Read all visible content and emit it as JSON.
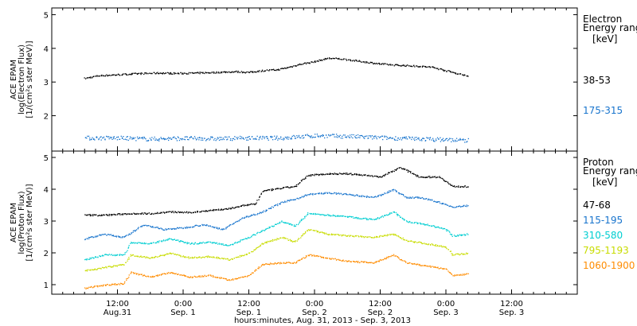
{
  "chart_data": [
    {
      "type": "scatter",
      "ylabel": [
        "ACE EPAM",
        "log(Electron Flux)",
        "[1/(cm²s ster MeV)]"
      ],
      "ylim": [
        0.95,
        5.2
      ],
      "yticks": [
        2,
        3,
        4,
        5
      ],
      "legend": {
        "title_lines": [
          "Electron",
          "Energy range"
        ],
        "unit": "[keV]",
        "placement": "right"
      },
      "series": [
        {
          "name": "38-53",
          "color": "#000000",
          "x": [
            0.25,
            0.35,
            0.5,
            0.65,
            0.8,
            0.95,
            1.1,
            1.25,
            1.4,
            1.5,
            1.6,
            1.72,
            1.8,
            1.9,
            2.0,
            2.1,
            2.2,
            2.3,
            2.5,
            2.6,
            2.7,
            2.8,
            2.9,
            3.0,
            3.1,
            3.17
          ],
          "y": [
            3.12,
            3.2,
            3.23,
            3.26,
            3.28,
            3.27,
            3.28,
            3.3,
            3.32,
            3.3,
            3.35,
            3.38,
            3.45,
            3.55,
            3.62,
            3.72,
            3.7,
            3.65,
            3.55,
            3.52,
            3.5,
            3.48,
            3.45,
            3.35,
            3.25,
            3.2
          ]
        },
        {
          "name": "175-315",
          "color": "#1874cd",
          "x": [
            0.25,
            0.5,
            0.75,
            1.0,
            1.25,
            1.5,
            1.75,
            2.0,
            2.25,
            2.5,
            2.75,
            3.0,
            3.17
          ],
          "y": [
            1.35,
            1.35,
            1.32,
            1.34,
            1.33,
            1.35,
            1.35,
            1.42,
            1.4,
            1.36,
            1.33,
            1.3,
            1.28
          ]
        }
      ]
    },
    {
      "type": "scatter",
      "ylabel": [
        "ACE EPAM",
        "log(Proton Flux)",
        "[1/(cm²s ster MeV)]"
      ],
      "ylim": [
        0.7,
        5.2
      ],
      "yticks": [
        1,
        2,
        3,
        4,
        5
      ],
      "legend": {
        "title_lines": [
          "Proton",
          "Energy range"
        ],
        "unit": "[keV]",
        "placement": "right"
      },
      "series": [
        {
          "name": "47-68",
          "color": "#000000",
          "x": [
            0.25,
            0.4,
            0.6,
            0.75,
            0.9,
            1.05,
            1.2,
            1.35,
            1.45,
            1.55,
            1.6,
            1.75,
            1.85,
            1.95,
            2.1,
            2.25,
            2.4,
            2.5,
            2.65,
            2.8,
            2.95,
            3.05,
            3.17
          ],
          "y": [
            3.2,
            3.2,
            3.25,
            3.25,
            3.3,
            3.28,
            3.35,
            3.4,
            3.5,
            3.55,
            3.95,
            4.05,
            4.1,
            4.45,
            4.5,
            4.5,
            4.45,
            4.4,
            4.7,
            4.4,
            4.4,
            4.1,
            4.1
          ]
        },
        {
          "name": "115-195",
          "color": "#1874cd",
          "x": [
            0.25,
            0.4,
            0.55,
            0.7,
            0.85,
            1.0,
            1.15,
            1.3,
            1.45,
            1.6,
            1.75,
            1.85,
            1.95,
            2.1,
            2.25,
            2.45,
            2.6,
            2.7,
            2.8,
            2.95,
            3.05,
            3.17
          ],
          "y": [
            2.45,
            2.6,
            2.5,
            2.9,
            2.75,
            2.8,
            2.9,
            2.75,
            3.1,
            3.3,
            3.6,
            3.7,
            3.85,
            3.9,
            3.85,
            3.75,
            4.0,
            3.75,
            3.75,
            3.6,
            3.45,
            3.5
          ]
        },
        {
          "name": "310-580",
          "color": "#00ced1",
          "x": [
            0.25,
            0.4,
            0.55,
            0.6,
            0.75,
            0.9,
            1.05,
            1.2,
            1.35,
            1.5,
            1.6,
            1.75,
            1.85,
            1.95,
            2.1,
            2.25,
            2.45,
            2.6,
            2.7,
            2.85,
            3.0,
            3.05,
            3.17
          ],
          "y": [
            1.8,
            1.95,
            1.95,
            2.35,
            2.3,
            2.45,
            2.3,
            2.35,
            2.25,
            2.5,
            2.7,
            3.0,
            2.85,
            3.25,
            3.2,
            3.15,
            3.05,
            3.3,
            3.0,
            2.9,
            2.75,
            2.55,
            2.6
          ]
        },
        {
          "name": "795-1193",
          "color": "#c8dc00",
          "x": [
            0.25,
            0.4,
            0.55,
            0.6,
            0.75,
            0.9,
            1.05,
            1.2,
            1.35,
            1.5,
            1.6,
            1.75,
            1.85,
            1.95,
            2.1,
            2.25,
            2.45,
            2.6,
            2.7,
            2.85,
            3.0,
            3.05,
            3.17
          ],
          "y": [
            1.45,
            1.55,
            1.65,
            1.95,
            1.85,
            2.0,
            1.85,
            1.9,
            1.8,
            2.0,
            2.3,
            2.5,
            2.35,
            2.75,
            2.6,
            2.55,
            2.5,
            2.6,
            2.4,
            2.3,
            2.2,
            1.95,
            2.0
          ]
        },
        {
          "name": "1060-1900",
          "color": "#ff8c00",
          "x": [
            0.25,
            0.4,
            0.55,
            0.6,
            0.75,
            0.9,
            1.05,
            1.2,
            1.35,
            1.5,
            1.6,
            1.75,
            1.85,
            1.95,
            2.1,
            2.25,
            2.45,
            2.6,
            2.7,
            2.85,
            3.0,
            3.05,
            3.17
          ],
          "y": [
            0.9,
            1.0,
            1.05,
            1.4,
            1.25,
            1.4,
            1.25,
            1.3,
            1.15,
            1.3,
            1.65,
            1.7,
            1.7,
            1.95,
            1.85,
            1.75,
            1.7,
            1.95,
            1.7,
            1.6,
            1.5,
            1.3,
            1.35
          ]
        }
      ]
    }
  ],
  "x_axis": {
    "unit": "days since Aug. 31, 2013 00:00",
    "range": [
      0.0,
      4.0
    ],
    "ticks": [
      {
        "pos": 0.5,
        "line1": "12:00",
        "line2": "Aug.31"
      },
      {
        "pos": 1.0,
        "line1": "0:00",
        "line2": "Sep. 1"
      },
      {
        "pos": 1.5,
        "line1": "12:00",
        "line2": "Sep. 1"
      },
      {
        "pos": 2.0,
        "line1": "0:00",
        "line2": "Sep. 2"
      },
      {
        "pos": 2.5,
        "line1": "12:00",
        "line2": "Sep. 2"
      },
      {
        "pos": 3.0,
        "line1": "0:00",
        "line2": "Sep. 3"
      },
      {
        "pos": 3.5,
        "line1": "12:00",
        "line2": "Sep. 3"
      }
    ],
    "title": "hours:minutes, Aug. 31, 2013 - Sep.  3, 2013"
  }
}
